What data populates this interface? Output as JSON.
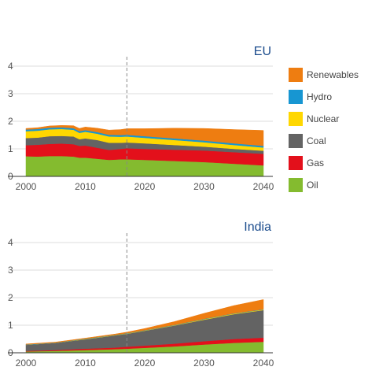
{
  "chart_data": [
    {
      "type": "area",
      "stacked": true,
      "title": "EU",
      "xlabel": "",
      "ylabel": "",
      "x": [
        2000,
        2002,
        2004,
        2006,
        2008,
        2009,
        2010,
        2012,
        2014,
        2016,
        2017,
        2020,
        2025,
        2030,
        2035,
        2040
      ],
      "xticks": [
        2000,
        2010,
        2020,
        2030,
        2040
      ],
      "yticks": [
        0,
        1,
        2,
        3,
        4
      ],
      "xlim": [
        2000,
        2040
      ],
      "ylim": [
        0,
        4
      ],
      "projection_start": 2017,
      "grid": true,
      "series": [
        {
          "name": "Oil",
          "color": "#84bb2f",
          "values": [
            0.73,
            0.72,
            0.74,
            0.74,
            0.72,
            0.68,
            0.68,
            0.64,
            0.6,
            0.62,
            0.62,
            0.6,
            0.56,
            0.52,
            0.46,
            0.4
          ]
        },
        {
          "name": "Gas",
          "color": "#e3101b",
          "values": [
            0.4,
            0.43,
            0.44,
            0.45,
            0.45,
            0.43,
            0.44,
            0.4,
            0.36,
            0.38,
            0.4,
            0.4,
            0.41,
            0.42,
            0.42,
            0.42
          ]
        },
        {
          "name": "Coal",
          "color": "#636363",
          "values": [
            0.26,
            0.26,
            0.28,
            0.28,
            0.28,
            0.24,
            0.26,
            0.28,
            0.26,
            0.22,
            0.21,
            0.2,
            0.17,
            0.14,
            0.12,
            0.11
          ]
        },
        {
          "name": "Nuclear",
          "color": "#ffd700",
          "values": [
            0.25,
            0.25,
            0.25,
            0.25,
            0.24,
            0.23,
            0.24,
            0.23,
            0.23,
            0.22,
            0.22,
            0.2,
            0.18,
            0.16,
            0.14,
            0.12
          ]
        },
        {
          "name": "Hydro",
          "color": "#1796d2",
          "values": [
            0.06,
            0.06,
            0.06,
            0.06,
            0.06,
            0.06,
            0.06,
            0.06,
            0.06,
            0.06,
            0.06,
            0.06,
            0.06,
            0.06,
            0.06,
            0.06
          ]
        },
        {
          "name": "Renewables",
          "color": "#ee7d11",
          "values": [
            0.04,
            0.05,
            0.06,
            0.07,
            0.09,
            0.1,
            0.11,
            0.14,
            0.17,
            0.2,
            0.22,
            0.27,
            0.37,
            0.44,
            0.5,
            0.56
          ]
        }
      ]
    },
    {
      "type": "area",
      "stacked": true,
      "title": "India",
      "xlabel": "",
      "ylabel": "",
      "x": [
        2000,
        2005,
        2010,
        2015,
        2017,
        2020,
        2025,
        2030,
        2035,
        2040
      ],
      "xticks": [
        2000,
        2010,
        2020,
        2030,
        2040
      ],
      "yticks": [
        0,
        1,
        2,
        3,
        4
      ],
      "xlim": [
        2000,
        2040
      ],
      "ylim": [
        0,
        4
      ],
      "projection_start": 2017,
      "grid": true,
      "series": [
        {
          "name": "Oil",
          "color": "#84bb2f",
          "values": [
            0.05,
            0.07,
            0.1,
            0.13,
            0.15,
            0.18,
            0.23,
            0.3,
            0.36,
            0.4
          ]
        },
        {
          "name": "Gas",
          "color": "#e3101b",
          "values": [
            0.02,
            0.03,
            0.05,
            0.06,
            0.07,
            0.08,
            0.1,
            0.12,
            0.14,
            0.15
          ]
        },
        {
          "name": "Coal",
          "color": "#636363",
          "values": [
            0.22,
            0.26,
            0.34,
            0.44,
            0.47,
            0.54,
            0.66,
            0.78,
            0.9,
            1.0
          ]
        },
        {
          "name": "Nuclear",
          "color": "#ffd700",
          "values": [
            0.0,
            0.0,
            0.01,
            0.01,
            0.01,
            0.01,
            0.01,
            0.02,
            0.02,
            0.02
          ]
        },
        {
          "name": "Hydro",
          "color": "#1796d2",
          "values": [
            0.01,
            0.01,
            0.01,
            0.01,
            0.01,
            0.01,
            0.01,
            0.01,
            0.01,
            0.01
          ]
        },
        {
          "name": "Renewables",
          "color": "#ee7d11",
          "values": [
            0.02,
            0.02,
            0.02,
            0.03,
            0.04,
            0.06,
            0.12,
            0.2,
            0.28,
            0.35
          ]
        }
      ]
    }
  ],
  "legend": {
    "position": "right",
    "items": [
      {
        "label": "Renewables",
        "color": "#ee7d11"
      },
      {
        "label": "Hydro",
        "color": "#1796d2"
      },
      {
        "label": "Nuclear",
        "color": "#ffd700"
      },
      {
        "label": "Coal",
        "color": "#636363"
      },
      {
        "label": "Gas",
        "color": "#e3101b"
      },
      {
        "label": "Oil",
        "color": "#84bb2f"
      }
    ]
  }
}
